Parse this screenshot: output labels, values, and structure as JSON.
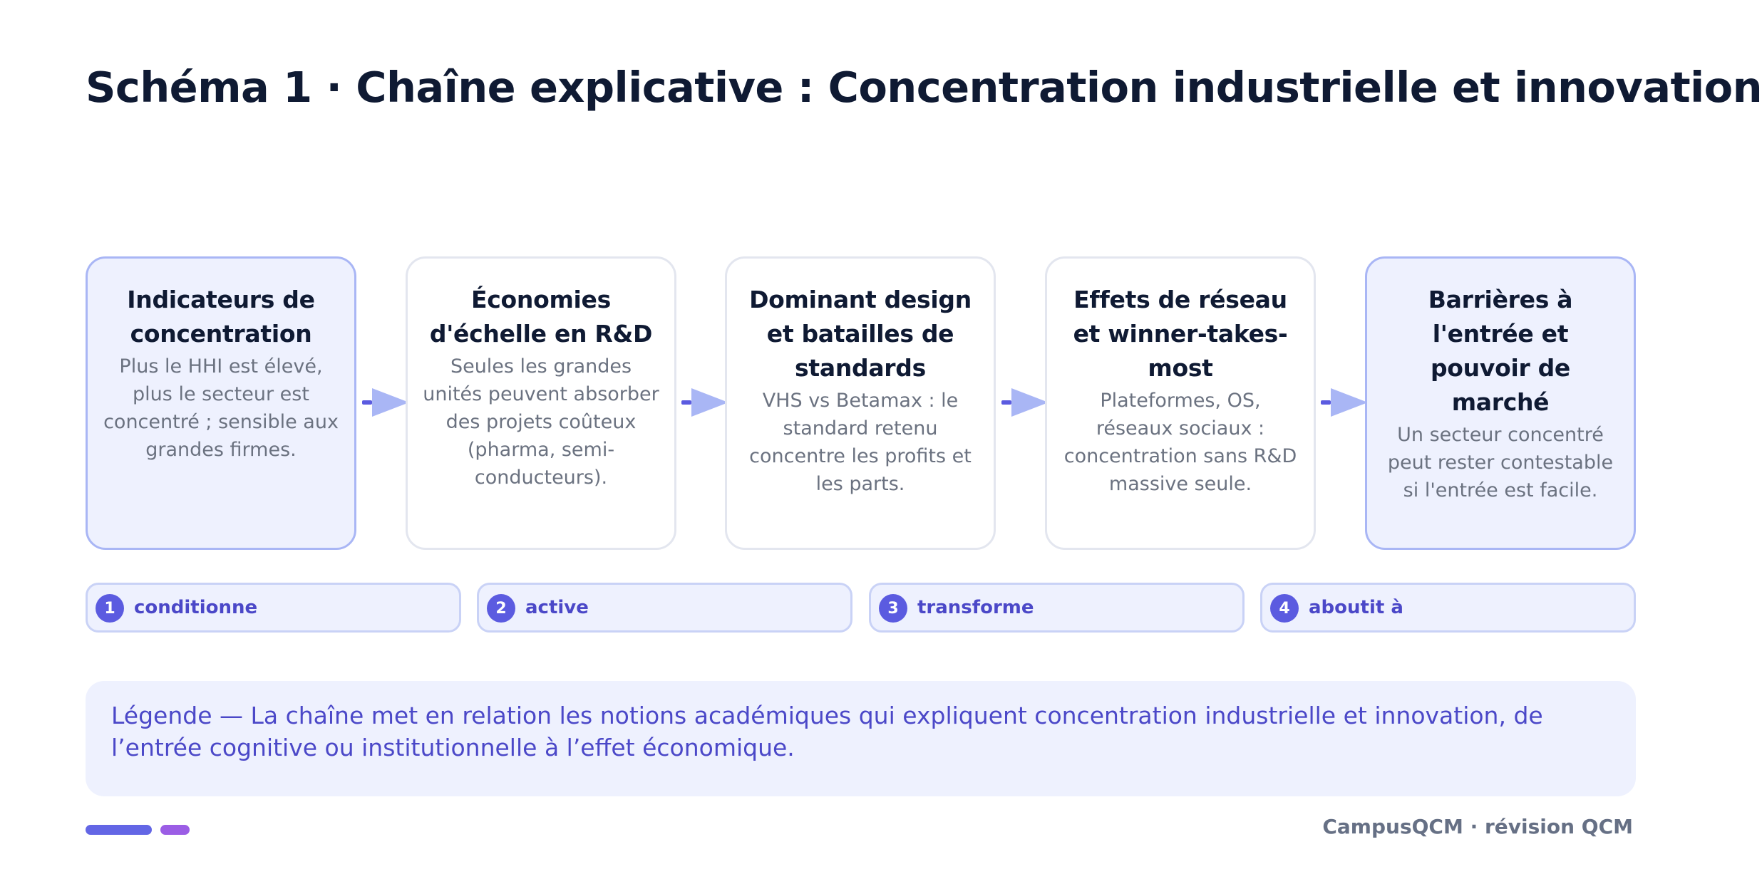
{
  "title": "Schéma 1 · Chaîne explicative : Concentration industrielle et innovation",
  "colors": {
    "accent": "#5b5be0",
    "arrow": "#a9b6f5",
    "card_highlight_bg": "#eef1fe",
    "card_border": "#e3e6ef"
  },
  "cards": [
    {
      "title": "Indicateurs de concentration",
      "text": "Plus le HHI est élevé, plus le secteur est concentré ; sensible aux grandes firmes."
    },
    {
      "title": "Économies d'échelle en R&D",
      "text": "Seules les grandes unités peuvent absorber des projets coûteux (pharma, semi-conducteurs)."
    },
    {
      "title": "Dominant design et batailles de standards",
      "text": "VHS vs Betamax : le standard retenu concentre les profits et les parts."
    },
    {
      "title": "Effets de réseau et winner-takes-most",
      "text": "Plateformes, OS, réseaux sociaux : concentration sans R&D massive seule."
    },
    {
      "title": "Barrières à l'entrée et pouvoir de marché",
      "text": "Un secteur concentré peut rester contestable si l'entrée est facile."
    }
  ],
  "links": [
    {
      "num": "1",
      "label": "conditionne"
    },
    {
      "num": "2",
      "label": "active"
    },
    {
      "num": "3",
      "label": "transforme"
    },
    {
      "num": "4",
      "label": "aboutit à"
    }
  ],
  "legend": "Légende — La chaîne met en relation les notions académiques qui expliquent concentration industrielle et innovation, de l’entrée cognitive ou institutionnelle à l’effet économique.",
  "footer": "CampusQCM · révision QCM"
}
